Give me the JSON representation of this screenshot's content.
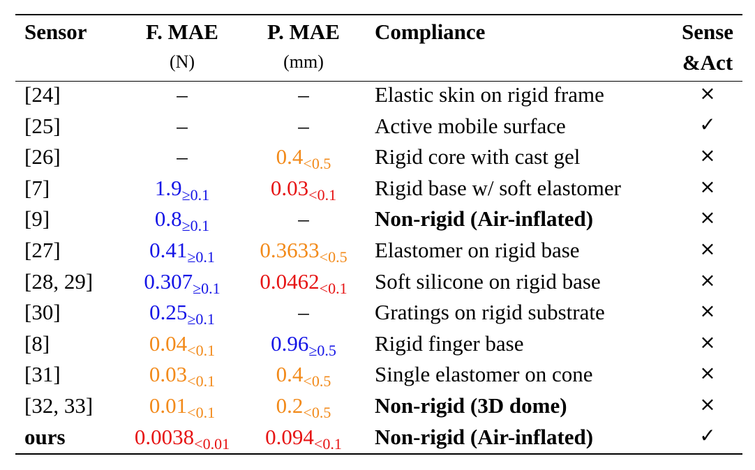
{
  "table": {
    "headers": {
      "sensor": "Sensor",
      "force": "F. MAE",
      "force_unit": "(N)",
      "position": "P. MAE",
      "position_unit": "(mm)",
      "compliance": "Compliance",
      "sense_line1": "Sense",
      "sense_line2": "&Act"
    },
    "colors": {
      "blue": "#1515e6",
      "orange": "#f28a1a",
      "red": "#e61414"
    },
    "rows": [
      {
        "sensor": "[24]",
        "f_val": "–",
        "f_sub": "",
        "f_color": "dash",
        "p_val": "–",
        "p_sub": "",
        "p_color": "dash",
        "compliance": "Elastic skin on rigid frame",
        "compliance_bold": false,
        "act": "×",
        "sensor_bold": false
      },
      {
        "sensor": "[25]",
        "f_val": "–",
        "f_sub": "",
        "f_color": "dash",
        "p_val": "–",
        "p_sub": "",
        "p_color": "dash",
        "compliance": "Active mobile surface",
        "compliance_bold": false,
        "act": "✓",
        "sensor_bold": false
      },
      {
        "sensor": "[26]",
        "f_val": "–",
        "f_sub": "",
        "f_color": "dash",
        "p_val": "0.4",
        "p_sub": "<0.5",
        "p_color": "orange",
        "compliance": "Rigid core with cast gel",
        "compliance_bold": false,
        "act": "×",
        "sensor_bold": false
      },
      {
        "sensor": "[7]",
        "f_val": "1.9",
        "f_sub": "≥0.1",
        "f_color": "blue",
        "p_val": "0.03",
        "p_sub": "<0.1",
        "p_color": "red",
        "compliance": "Rigid base w/ soft elastomer",
        "compliance_bold": false,
        "act": "×",
        "sensor_bold": false
      },
      {
        "sensor": "[9]",
        "f_val": "0.8",
        "f_sub": "≥0.1",
        "f_color": "blue",
        "p_val": "–",
        "p_sub": "",
        "p_color": "dash",
        "compliance": "Non-rigid (Air-inflated)",
        "compliance_bold": true,
        "act": "×",
        "sensor_bold": false
      },
      {
        "sensor": "[27]",
        "f_val": "0.41",
        "f_sub": "≥0.1",
        "f_color": "blue",
        "p_val": "0.3633",
        "p_sub": "<0.5",
        "p_color": "orange",
        "compliance": "Elastomer on rigid base",
        "compliance_bold": false,
        "act": "×",
        "sensor_bold": false
      },
      {
        "sensor": "[28, 29]",
        "f_val": "0.307",
        "f_sub": "≥0.1",
        "f_color": "blue",
        "p_val": "0.0462",
        "p_sub": "<0.1",
        "p_color": "red",
        "compliance": "Soft silicone on rigid base",
        "compliance_bold": false,
        "act": "×",
        "sensor_bold": false
      },
      {
        "sensor": "[30]",
        "f_val": "0.25",
        "f_sub": "≥0.1",
        "f_color": "blue",
        "p_val": "–",
        "p_sub": "",
        "p_color": "dash",
        "compliance": "Gratings on rigid substrate",
        "compliance_bold": false,
        "act": "×",
        "sensor_bold": false
      },
      {
        "sensor": "[8]",
        "f_val": "0.04",
        "f_sub": "<0.1",
        "f_color": "orange",
        "p_val": "0.96",
        "p_sub": "≥0.5",
        "p_color": "blue",
        "compliance": "Rigid finger base",
        "compliance_bold": false,
        "act": "×",
        "sensor_bold": false
      },
      {
        "sensor": "[31]",
        "f_val": "0.03",
        "f_sub": "<0.1",
        "f_color": "orange",
        "p_val": "0.4",
        "p_sub": "<0.5",
        "p_color": "orange",
        "compliance": "Single elastomer on cone",
        "compliance_bold": false,
        "act": "×",
        "sensor_bold": false
      },
      {
        "sensor": "[32, 33]",
        "f_val": "0.01",
        "f_sub": "<0.1",
        "f_color": "orange",
        "p_val": "0.2",
        "p_sub": "<0.5",
        "p_color": "orange",
        "compliance": "Non-rigid (3D dome)",
        "compliance_bold": true,
        "act": "×",
        "sensor_bold": false
      },
      {
        "sensor": "ours",
        "f_val": "0.0038",
        "f_sub": "<0.01",
        "f_color": "red",
        "p_val": "0.094",
        "p_sub": "<0.1",
        "p_color": "red",
        "compliance": "Non-rigid (Air-inflated)",
        "compliance_bold": true,
        "act": "✓",
        "sensor_bold": true
      }
    ]
  }
}
